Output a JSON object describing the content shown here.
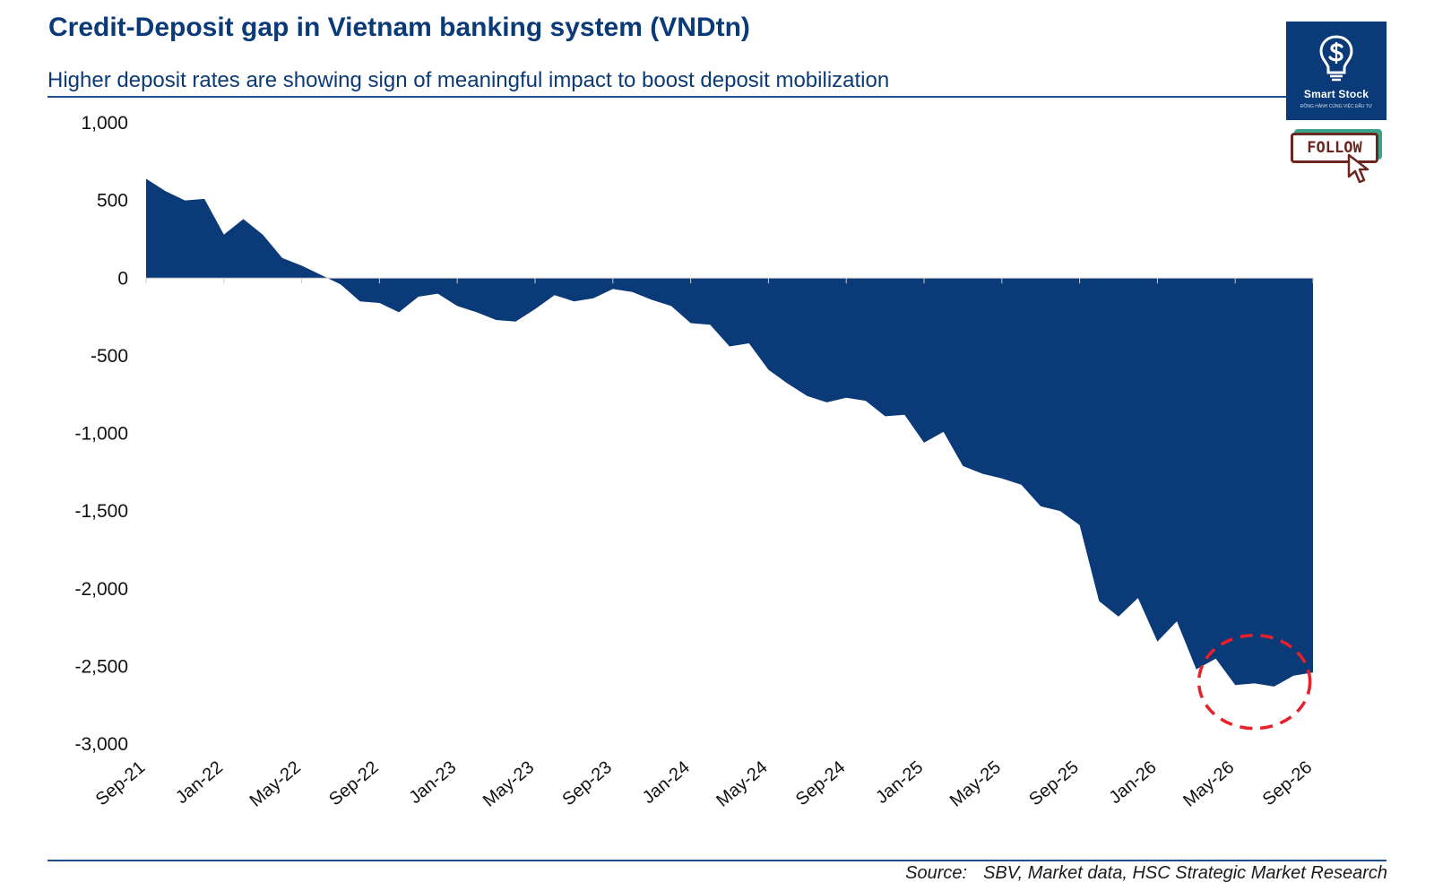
{
  "title": "Credit-Deposit gap in Vietnam banking system (VNDtn)",
  "subtitle": "Higher deposit rates are showing sign of meaningful impact to boost deposit mobilization",
  "source": {
    "label": "Source:",
    "text": "SBV, Market data, HSC Strategic Market Research"
  },
  "logo": {
    "name": "Smart Stock",
    "tagline": "ĐỒNG HÀNH CÙNG VIỆC ĐẦU TƯ",
    "follow_label": "FOLLOW",
    "color": "#0b3a78"
  },
  "colors": {
    "area": "#0b3a78",
    "highlight_circle": "#e8202a",
    "text": "#0b3a78"
  },
  "chart_data": {
    "type": "area",
    "title": "Credit-Deposit gap in Vietnam banking system (VNDtn)",
    "subtitle": "Higher deposit rates are showing sign of meaningful impact to boost deposit mobilization",
    "ylim": [
      -3000,
      1000
    ],
    "yticks": [
      1000,
      500,
      0,
      -500,
      -1000,
      -1500,
      -2000,
      -2500,
      -3000
    ],
    "ytick_labels": [
      "1,000",
      "500",
      "0",
      "-500",
      "-1,000",
      "-1,500",
      "-2,000",
      "-2,500",
      "-3,000"
    ],
    "xtick_labels": [
      "Sep-21",
      "Jan-22",
      "May-22",
      "Sep-22",
      "Jan-23",
      "May-23",
      "Sep-23",
      "Jan-24",
      "May-24",
      "Sep-24",
      "Jan-25",
      "May-25",
      "Sep-25",
      "Jan-26",
      "May-26",
      "Sep-26"
    ],
    "x": [
      "Sep-21",
      "Oct-21",
      "Nov-21",
      "Dec-21",
      "Jan-22",
      "Feb-22",
      "Mar-22",
      "Apr-22",
      "May-22",
      "Jun-22",
      "Jul-22",
      "Aug-22",
      "Sep-22",
      "Oct-22",
      "Nov-22",
      "Dec-22",
      "Jan-23",
      "Feb-23",
      "Mar-23",
      "Apr-23",
      "May-23",
      "Jun-23",
      "Jul-23",
      "Aug-23",
      "Sep-23",
      "Oct-23",
      "Nov-23",
      "Dec-23",
      "Jan-24",
      "Feb-24",
      "Mar-24",
      "Apr-24",
      "May-24",
      "Jun-24",
      "Jul-24",
      "Aug-24",
      "Sep-24",
      "Oct-24",
      "Nov-24",
      "Dec-24",
      "Jan-25",
      "Feb-25",
      "Mar-25",
      "Apr-25",
      "May-25",
      "Jun-25",
      "Jul-25",
      "Aug-25",
      "Sep-25",
      "Oct-25",
      "Nov-25",
      "Dec-25",
      "Jan-26",
      "Feb-26",
      "Mar-26",
      "Apr-26",
      "May-26",
      "Jun-26",
      "Jul-26",
      "Aug-26",
      "Sep-26"
    ],
    "series": [
      {
        "values": [
          640,
          560,
          500,
          510,
          280,
          380,
          280,
          130,
          80,
          20,
          -40,
          -150,
          -160,
          -220,
          -120,
          -100,
          -180,
          -220,
          -270,
          -280,
          -200,
          -110,
          -150,
          -130,
          -70,
          -90,
          -140,
          -180,
          -290,
          -300,
          -440,
          -420,
          -590,
          -680,
          -760,
          -800,
          -770,
          -790,
          -890,
          -880,
          -1060,
          -990,
          -1210,
          -1260,
          -1290,
          -1330,
          -1470,
          -1500,
          -1590,
          -2080,
          -2180,
          -2060,
          -2340,
          -2210,
          -2520,
          -2450,
          -2620,
          -2610,
          -2630,
          -2560,
          -2540
        ]
      }
    ],
    "annotation": "dashed red circle around May-26 to Sep-26",
    "grid": false,
    "legend": "none"
  }
}
